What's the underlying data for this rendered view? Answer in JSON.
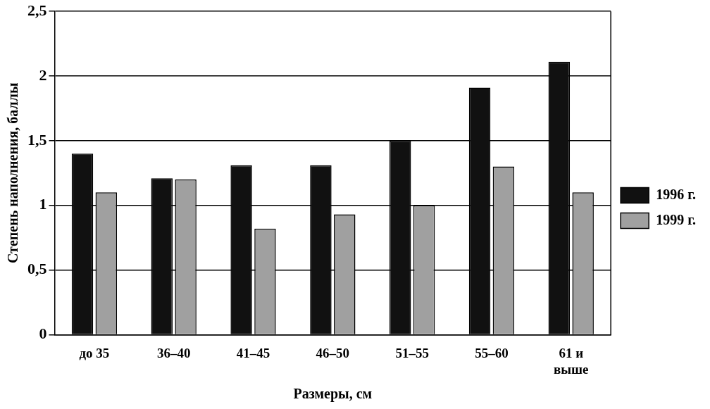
{
  "chart_data": {
    "type": "bar",
    "xlabel": "Размеры, см",
    "ylabel": "Степень наполнения, баллы",
    "categories": [
      "до 35",
      "36–40",
      "41–45",
      "46–50",
      "51–55",
      "55–60",
      "61 и\nвыше"
    ],
    "series": [
      {
        "name": "1996 г.",
        "color": "#111111",
        "values": [
          1.4,
          1.21,
          1.31,
          1.31,
          1.5,
          1.91,
          2.11
        ]
      },
      {
        "name": "1999 г.",
        "color": "#a0a0a0",
        "values": [
          1.1,
          1.2,
          0.82,
          0.93,
          1.0,
          1.3,
          1.1
        ]
      }
    ],
    "ylim": [
      0,
      2.5
    ],
    "yticks": [
      {
        "value": 0,
        "label": "0"
      },
      {
        "value": 0.5,
        "label": "0,5"
      },
      {
        "value": 1,
        "label": "1"
      },
      {
        "value": 1.5,
        "label": "1,5"
      },
      {
        "value": 2,
        "label": "2"
      },
      {
        "value": 2.5,
        "label": "2,5"
      }
    ],
    "grid": "y",
    "legend": "right"
  }
}
